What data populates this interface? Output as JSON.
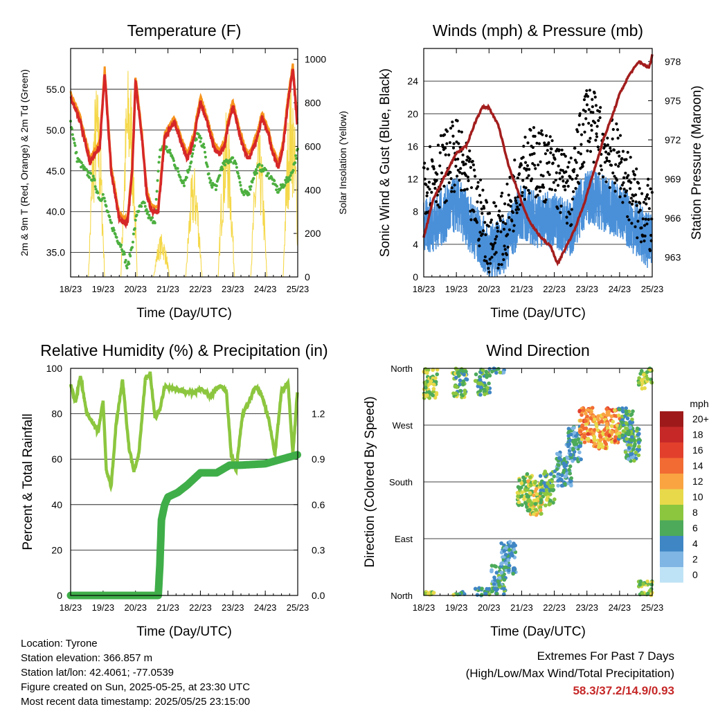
{
  "days": [
    "18/23",
    "19/23",
    "20/23",
    "21/23",
    "22/23",
    "23/23",
    "24/23",
    "25/23"
  ],
  "panels": {
    "temperature": {
      "title": "Temperature (F)",
      "xlabel": "Time (Day/UTC)",
      "ylabel_left": "2m & 9m T (Red, Orange) & 2m Td (Green)",
      "ylabel_right": "Solar Insolation (Yellow)",
      "ylim_left": [
        32,
        60
      ],
      "ylim_right": [
        0,
        1050
      ],
      "yticks_left": [
        "35.0",
        "40.0",
        "45.0",
        "50.0",
        "55.0"
      ],
      "yticks_right": [
        "0",
        "200",
        "400",
        "600",
        "800",
        "1000"
      ]
    },
    "winds": {
      "title": "Winds (mph) & Pressure (mb)",
      "xlabel": "Time (Day/UTC)",
      "ylabel_left": "Sonic Wind & Gust (Blue, Black)",
      "ylabel_right": "Station Pressure (Maroon)",
      "ylim_left": [
        0,
        28
      ],
      "ylim_right": [
        961.5,
        979
      ],
      "yticks_left": [
        "0",
        "4",
        "8",
        "12",
        "16",
        "20",
        "24"
      ],
      "yticks_right": [
        "963",
        "966",
        "969",
        "972",
        "975",
        "978"
      ]
    },
    "humidity": {
      "title": "Relative Humidity (%) & Precipitation (in)",
      "xlabel": "Time (Day/UTC)",
      "ylabel_left": "Percent & Total Rainfall",
      "ylim_left": [
        0,
        100
      ],
      "ylim_right": [
        0,
        1.5
      ],
      "yticks_left": [
        "0",
        "20",
        "40",
        "60",
        "80",
        "100"
      ],
      "yticks_right": [
        "0.0",
        "0.3",
        "0.6",
        "0.9",
        "1.2"
      ]
    },
    "direction": {
      "title": "Wind Direction",
      "xlabel": "Time (Day/UTC)",
      "ylabel_left": "Direction (Colored By Speed)",
      "yticks_left": [
        "North",
        "East",
        "South",
        "West",
        "North"
      ],
      "legend_title": "mph",
      "legend_labels": [
        "20+",
        "18",
        "16",
        "14",
        "12",
        "10",
        "8",
        "6",
        "4",
        "2",
        "0"
      ],
      "legend_colors": [
        "#9e1a1a",
        "#c62828",
        "#e2402c",
        "#f26b33",
        "#f9a441",
        "#e8d94a",
        "#8cc63f",
        "#4caa5a",
        "#3f86c4",
        "#7fb6e4",
        "#bfe3f6"
      ]
    }
  },
  "chart_data": [
    {
      "type": "line",
      "title": "Temperature (F)",
      "xlabel": "Time (Day/UTC)",
      "ylabel": "2m & 9m T (Red, Orange) & 2m Td (Green)",
      "y2label": "Solar Insolation (Yellow)",
      "x_days": [
        18,
        19,
        20,
        21,
        22,
        23,
        24,
        25
      ],
      "series": [
        {
          "name": "2m & 9m T",
          "color": "#d62728",
          "days": [
            18.0,
            18.3,
            18.6,
            18.9,
            19.05,
            19.25,
            19.5,
            19.75,
            19.9,
            20.0,
            20.2,
            20.35,
            20.5,
            20.7,
            20.9,
            21.2,
            21.4,
            21.6,
            21.8,
            22.0,
            22.2,
            22.45,
            22.6,
            22.75,
            22.85,
            23.0,
            23.2,
            23.4,
            23.5,
            23.75,
            23.9,
            24.1,
            24.2,
            24.4,
            24.55,
            24.7,
            24.85,
            25.0
          ],
          "values": [
            54.0,
            51.0,
            46.0,
            48.0,
            57.0,
            45.0,
            39.0,
            38.5,
            45.0,
            56.0,
            49.0,
            42.0,
            40.0,
            40.0,
            49.0,
            51.0,
            48.5,
            46.5,
            49.0,
            53.5,
            51.0,
            47.5,
            47.0,
            48.0,
            50.5,
            53.0,
            49.5,
            47.0,
            46.5,
            49.0,
            51.5,
            49.5,
            47.5,
            45.5,
            48.0,
            53.5,
            57.5,
            50.0
          ]
        },
        {
          "name": "2m Td",
          "color": "#4caf3f",
          "days": [
            18.0,
            18.2,
            18.45,
            18.7,
            18.9,
            19.0,
            19.2,
            19.4,
            19.6,
            19.75,
            19.9,
            20.05,
            20.25,
            20.45,
            20.6,
            20.75,
            20.9,
            21.1,
            21.35,
            21.5,
            21.7,
            21.9,
            22.1,
            22.3,
            22.5,
            22.65,
            22.8,
            22.95,
            23.1,
            23.3,
            23.5,
            23.65,
            23.8,
            24.0,
            24.2,
            24.4,
            24.6,
            24.8,
            25.0
          ],
          "values": [
            51.0,
            46.5,
            45.0,
            44.0,
            41.5,
            42.0,
            39.0,
            37.0,
            35.5,
            33.0,
            36.0,
            40.0,
            41.0,
            39.0,
            39.0,
            47.5,
            48.0,
            47.0,
            44.5,
            43.5,
            46.0,
            49.5,
            48.0,
            43.5,
            43.0,
            45.5,
            46.0,
            46.5,
            46.0,
            42.0,
            42.5,
            44.5,
            45.5,
            45.0,
            44.0,
            42.5,
            43.5,
            44.5,
            47.5
          ]
        },
        {
          "name": "Solar Insolation",
          "color": "#f5d84a",
          "axis": "right",
          "peaks_day": [
            18.8,
            19.8,
            20.8,
            21.8,
            22.8,
            23.8,
            24.8
          ],
          "peaks_value": [
            900,
            1000,
            200,
            520,
            760,
            680,
            920
          ]
        }
      ]
    },
    {
      "type": "scatter",
      "title": "Winds (mph) & Pressure (mb)",
      "xlabel": "Time (Day/UTC)",
      "ylabel": "Sonic Wind & Gust (Blue, Black)",
      "y2label": "Station Pressure (Maroon)",
      "x_days": [
        18,
        19,
        20,
        21,
        22,
        23,
        24,
        25
      ],
      "series": [
        {
          "name": "Sonic Wind",
          "color": "#4a90d9",
          "days": [
            18.0,
            18.5,
            19.0,
            19.5,
            20.0,
            20.5,
            21.0,
            21.5,
            22.0,
            22.5,
            23.0,
            23.5,
            24.0,
            24.5,
            25.0
          ],
          "values": [
            6,
            7,
            9,
            6,
            3,
            4,
            8,
            7,
            7,
            6,
            10,
            9,
            8,
            6,
            4
          ]
        },
        {
          "name": "Gust",
          "color": "#000000",
          "days": [
            18.0,
            18.5,
            19.0,
            19.5,
            20.0,
            20.5,
            21.0,
            21.5,
            22.0,
            22.5,
            23.0,
            23.5,
            24.0,
            24.5,
            25.0
          ],
          "values": [
            12,
            13,
            15,
            10,
            5,
            6,
            14,
            14,
            13,
            10,
            20,
            16,
            14,
            9,
            7
          ]
        },
        {
          "name": "Station Pressure",
          "color": "#a31d1d",
          "axis": "right",
          "days": [
            18.0,
            18.3,
            18.6,
            19.0,
            19.3,
            19.6,
            19.8,
            20.0,
            20.3,
            20.6,
            20.9,
            21.1,
            21.3,
            21.6,
            21.9,
            22.1,
            22.3,
            22.6,
            22.9,
            23.2,
            23.5,
            23.8,
            24.0,
            24.3,
            24.6,
            24.9,
            25.0
          ],
          "values": [
            964.5,
            967.5,
            969.0,
            971.0,
            971.5,
            973.5,
            974.5,
            974.5,
            973.0,
            970.0,
            968.0,
            966.5,
            965.5,
            964.5,
            963.8,
            962.5,
            963.5,
            965.0,
            967.0,
            969.5,
            972.0,
            974.0,
            975.5,
            977.0,
            978.0,
            977.5,
            978.5
          ]
        }
      ]
    },
    {
      "type": "line",
      "title": "Relative Humidity (%) & Precipitation (in)",
      "xlabel": "Time (Day/UTC)",
      "ylabel": "Percent & Total Rainfall",
      "x_days": [
        18,
        19,
        20,
        21,
        22,
        23,
        24,
        25
      ],
      "series": [
        {
          "name": "Relative Humidity",
          "color": "#8cc63f",
          "days": [
            18.0,
            18.15,
            18.3,
            18.5,
            18.7,
            18.85,
            19.0,
            19.1,
            19.25,
            19.4,
            19.6,
            19.8,
            19.95,
            20.1,
            20.3,
            20.45,
            20.6,
            20.75,
            20.9,
            21.2,
            21.5,
            21.8,
            22.0,
            22.3,
            22.6,
            22.8,
            22.95,
            23.1,
            23.3,
            23.5,
            23.7,
            23.9,
            24.1,
            24.3,
            24.5,
            24.7,
            24.85,
            25.0
          ],
          "values": [
            93,
            85,
            97,
            80,
            76,
            72,
            86,
            55,
            48,
            75,
            95,
            65,
            55,
            62,
            95,
            98,
            78,
            82,
            92,
            91,
            90,
            89,
            91,
            88,
            92,
            90,
            62,
            55,
            80,
            85,
            92,
            88,
            78,
            62,
            90,
            94,
            62,
            92
          ]
        },
        {
          "name": "Total Rainfall",
          "color": "#3fae49",
          "axis": "right",
          "days": [
            18.0,
            20.7,
            20.75,
            20.8,
            20.9,
            21.0,
            21.3,
            21.6,
            22.0,
            22.5,
            22.9,
            23.2,
            24.0,
            24.5,
            25.0
          ],
          "values": [
            0.0,
            0.0,
            0.2,
            0.5,
            0.6,
            0.65,
            0.68,
            0.73,
            0.81,
            0.81,
            0.86,
            0.86,
            0.87,
            0.9,
            0.93
          ]
        }
      ]
    },
    {
      "type": "scatter",
      "title": "Wind Direction",
      "xlabel": "Time (Day/UTC)",
      "ylabel": "Direction (Colored By Speed)",
      "y_categories": [
        "North",
        "East",
        "South",
        "West",
        "North"
      ],
      "legend_title": "mph",
      "series": [
        {
          "name": "Wind Direction",
          "clusters_day": [
            18.2,
            19.1,
            19.8,
            20.3,
            20.6,
            21.1,
            21.4,
            21.8,
            22.3,
            22.6,
            23.0,
            23.4,
            23.8,
            24.2,
            24.4,
            24.8
          ],
          "clusters_direction_deg": [
            340,
            340,
            345,
            20,
            60,
            165,
            155,
            170,
            200,
            240,
            270,
            260,
            270,
            270,
            240,
            355
          ],
          "clusters_speed": [
            8,
            7,
            6,
            5,
            4,
            8,
            9,
            7,
            4,
            4,
            13,
            12,
            13,
            6,
            5,
            8
          ]
        }
      ]
    }
  ],
  "info": {
    "location": "Location: Tyrone",
    "elevation": "Station elevation: 366.857 m",
    "latlon": "Station lat/lon: 42.4061; -77.0539",
    "created": "Figure created on Sun, 2025-05-25, at 23:30 UTC",
    "recent": "Most recent data timestamp: 2025/05/25 23:15:00"
  },
  "extremes": {
    "title": "Extremes For Past 7 Days",
    "subtitle": "(High/Low/Max Wind/Total Precipitation)",
    "values": "58.3/37.2/14.9/0.93"
  }
}
